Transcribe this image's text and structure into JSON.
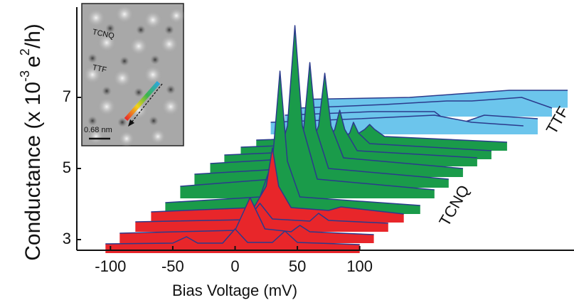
{
  "chart_data": {
    "type": "waterfall",
    "xlabel": "Bias Voltage (mV)",
    "ylabel": {
      "text": "Conductance (x 10",
      "exponent": "-3",
      "unit": "e",
      "unit_exponent": "2",
      "unit_tail": "/h)"
    },
    "xlim": [
      -127,
      272
    ],
    "ylim": [
      2.7,
      9.54
    ],
    "xticks": [
      -100,
      -50,
      0,
      50,
      100
    ],
    "yticks": [
      3,
      5,
      7
    ],
    "line_color": "#2b3a8c",
    "annotations": [
      "TCNQ",
      "TTF"
    ],
    "inset": {
      "labels": [
        "TCNQ",
        "TTF"
      ],
      "scale_bar": "0.68 nm"
    },
    "series": [
      {
        "color": "#e8262a",
        "x": [
          -104,
          -50,
          -39,
          -30,
          -10,
          0,
          10,
          30,
          40,
          50,
          100
        ],
        "values": [
          2.88,
          2.9,
          3.08,
          2.9,
          2.9,
          3.3,
          2.92,
          2.92,
          3.24,
          2.92,
          2.86
        ]
      },
      {
        "color": "#e8262a",
        "x": [
          -92.6,
          0,
          12,
          24,
          45,
          52,
          60,
          111.4
        ],
        "values": [
          3.18,
          3.26,
          4.18,
          3.3,
          3.22,
          3.4,
          3.22,
          3.14
        ]
      },
      {
        "color": "#e8262a",
        "x": [
          -80,
          10,
          20,
          30,
          60,
          67,
          75,
          122.9
        ],
        "values": [
          3.5,
          3.56,
          4.02,
          3.58,
          3.52,
          3.74,
          3.54,
          3.46
        ]
      },
      {
        "color": "#e8262a",
        "x": [
          -67.4,
          15,
          25,
          30,
          35,
          45,
          75,
          85,
          135.4
        ],
        "values": [
          3.78,
          3.9,
          4.5,
          5.58,
          4.5,
          3.9,
          3.82,
          3.92,
          3.72
        ]
      },
      {
        "color": "#1a9b4a",
        "x": [
          -56,
          20,
          30,
          36,
          42,
          52,
          148.6
        ],
        "values": [
          4.04,
          4.2,
          5.2,
          7.74,
          5.2,
          4.2,
          3.96
        ]
      },
      {
        "color": "#1a9b4a",
        "x": [
          -44,
          30,
          42,
          48,
          54,
          66,
          160
        ],
        "values": [
          4.5,
          4.7,
          6.2,
          9.02,
          6.2,
          4.7,
          4.4
        ]
      },
      {
        "color": "#1a9b4a",
        "x": [
          -32.6,
          45,
          55,
          60,
          65,
          75,
          171.4
        ],
        "values": [
          4.84,
          5.0,
          6.1,
          7.98,
          6.1,
          5.0,
          4.7
        ]
      },
      {
        "color": "#1a9b4a",
        "x": [
          -20,
          57,
          67,
          72,
          77,
          87,
          182.9
        ],
        "values": [
          5.14,
          5.3,
          6.2,
          7.68,
          6.2,
          5.3,
          5.0
        ]
      },
      {
        "color": "#1a9b4a",
        "x": [
          -8.6,
          70,
          80,
          84,
          88,
          98,
          194.3
        ],
        "values": [
          5.38,
          5.5,
          6.1,
          6.64,
          6.1,
          5.5,
          5.3
        ]
      },
      {
        "color": "#1a9b4a",
        "x": [
          4.6,
          82,
          92,
          95,
          99,
          108,
          205.7
        ],
        "values": [
          5.6,
          5.7,
          6.0,
          6.3,
          6.0,
          5.7,
          5.5
        ]
      },
      {
        "color": "#1a9b4a",
        "x": [
          17,
          95,
          104,
          108,
          112,
          120,
          218.3
        ],
        "values": [
          5.8,
          5.9,
          6.1,
          6.24,
          6.1,
          5.9,
          5.74
        ]
      },
      {
        "color": "#6cc5ec",
        "x": [
          28.6,
          100,
          160,
          190,
          231.4
        ],
        "values": [
          6.3,
          6.4,
          6.5,
          6.3,
          6.2
        ]
      },
      {
        "color": "#6cc5ec",
        "x": [
          40,
          110,
          160,
          175,
          200,
          242.9
        ],
        "values": [
          6.5,
          6.6,
          6.6,
          6.2,
          6.5,
          6.4
        ]
      },
      {
        "color": "#6cc5ec",
        "x": [
          51.4,
          120,
          170,
          190,
          230,
          254.3
        ],
        "values": [
          6.7,
          6.8,
          6.9,
          6.9,
          7.0,
          6.7
        ]
      },
      {
        "color": "#6cc5ec",
        "x": [
          62.9,
          140,
          180,
          220,
          266.9
        ],
        "values": [
          6.95,
          7.0,
          7.1,
          7.2,
          7.2
        ]
      }
    ]
  }
}
